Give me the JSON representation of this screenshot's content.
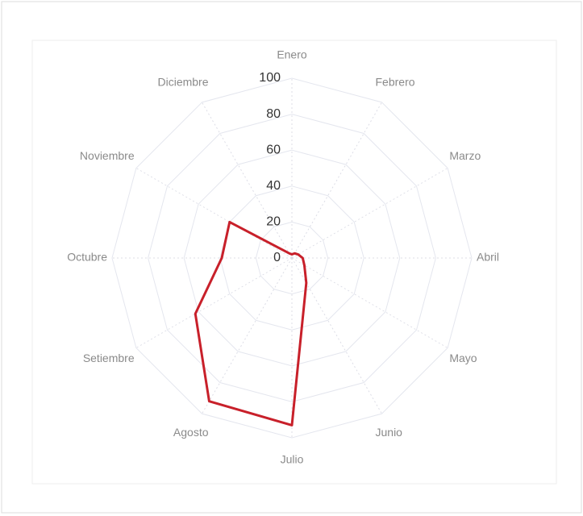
{
  "chart_data": {
    "type": "radar",
    "categories": [
      "Enero",
      "Febrero",
      "Marzo",
      "Abril",
      "Mayo",
      "Junio",
      "Julio",
      "Agosto",
      "Setiembre",
      "Octubre",
      "Noviembre",
      "Diciembre"
    ],
    "values": [
      2,
      3,
      4,
      6,
      8,
      16,
      93,
      92,
      62,
      39,
      40,
      3
    ],
    "color": "#c8202a",
    "rlim": [
      0,
      100
    ],
    "rticks": [
      0,
      20,
      40,
      60,
      80,
      100
    ],
    "grid": true
  }
}
